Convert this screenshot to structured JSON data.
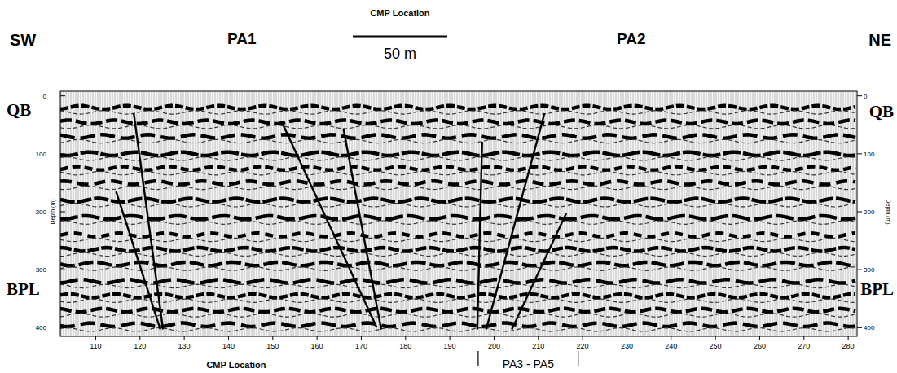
{
  "chart_data": {
    "type": "seismic",
    "title": "CMP Location",
    "x_label": "CMP Location",
    "y_label": "Depth (m)",
    "scale_bar": "50 m",
    "side_labels": {
      "left": "SW",
      "right": "NE"
    },
    "sections": [
      {
        "label": "PA1",
        "x": 143
      },
      {
        "label": "PA2",
        "x": 231
      }
    ],
    "marker_range": {
      "label": "PA3 - PA5",
      "x": [
        196.4,
        219
      ]
    },
    "horizons": [
      {
        "label": "QB",
        "depth": 7
      },
      {
        "label": "BPL",
        "depth": 317
      }
    ],
    "xlim": [
      102,
      282
    ],
    "xticks": [
      110,
      120,
      130,
      140,
      150,
      160,
      170,
      180,
      190,
      200,
      210,
      220,
      230,
      240,
      250,
      260,
      270,
      280
    ],
    "ylim": [
      -8,
      415
    ],
    "yticks": [
      0,
      100,
      200,
      300,
      400
    ],
    "reflectors": [
      20,
      45,
      70,
      100,
      125,
      150,
      180,
      210,
      240,
      265,
      290,
      320,
      345,
      370,
      395
    ],
    "color": "#000000",
    "series": [
      {
        "x": [
          118.6,
          125.2
        ],
        "values": [
          30,
          403
        ]
      },
      {
        "x": [
          114.6,
          124.6
        ],
        "values": [
          165,
          403
        ]
      },
      {
        "x": [
          152.4,
          173.5
        ],
        "values": [
          51,
          400
        ]
      },
      {
        "x": [
          166,
          174.5
        ],
        "values": [
          58,
          403
        ]
      },
      {
        "x": [
          197.3,
          196.2
        ],
        "values": [
          79,
          403
        ]
      },
      {
        "x": [
          211.4,
          198.2
        ],
        "values": [
          30,
          403
        ]
      },
      {
        "x": [
          216.3,
          204
        ],
        "values": [
          203,
          403
        ]
      }
    ]
  }
}
